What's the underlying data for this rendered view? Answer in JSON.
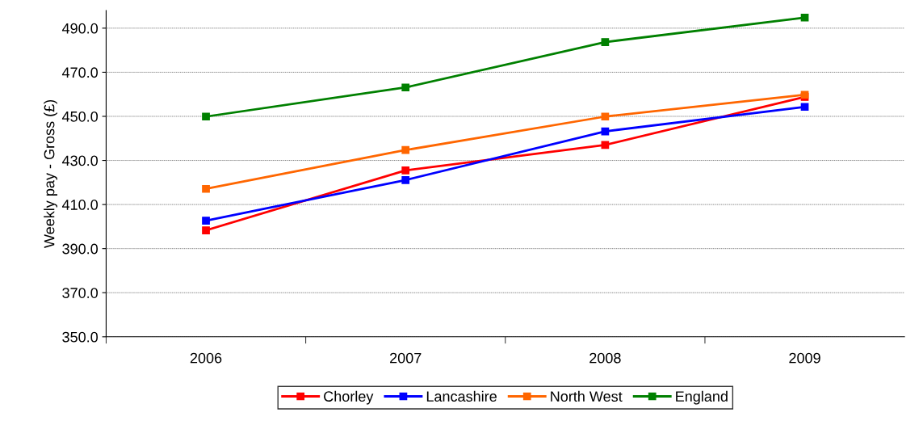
{
  "chart_data": {
    "type": "line",
    "ylabel": "Weekly pay - Gross (£)",
    "categories": [
      "2006",
      "2007",
      "2008",
      "2009"
    ],
    "series": [
      {
        "name": "Chorley",
        "color": "#ff0000",
        "values": [
          398.3,
          425.5,
          437.0,
          458.8
        ]
      },
      {
        "name": "Lancashire",
        "color": "#0000ff",
        "values": [
          402.7,
          421.1,
          443.2,
          454.3
        ]
      },
      {
        "name": "North West",
        "color": "#ff6600",
        "values": [
          417.1,
          434.7,
          449.9,
          459.8
        ]
      },
      {
        "name": "England",
        "color": "#008000",
        "values": [
          449.9,
          463.1,
          483.7,
          494.8
        ]
      }
    ],
    "ylim": [
      350,
      498
    ],
    "yticks": [
      {
        "value": 350,
        "label": "350.0"
      },
      {
        "value": 370,
        "label": "370.0"
      },
      {
        "value": 390,
        "label": "390.0"
      },
      {
        "value": 410,
        "label": "410.0"
      },
      {
        "value": 430,
        "label": "430.0"
      },
      {
        "value": 450,
        "label": "450.0"
      },
      {
        "value": 470,
        "label": "470.0"
      },
      {
        "value": 490,
        "label": "490.0"
      }
    ],
    "grid": "y",
    "legend": "bottom",
    "marker": "square",
    "line_style": "solid"
  }
}
